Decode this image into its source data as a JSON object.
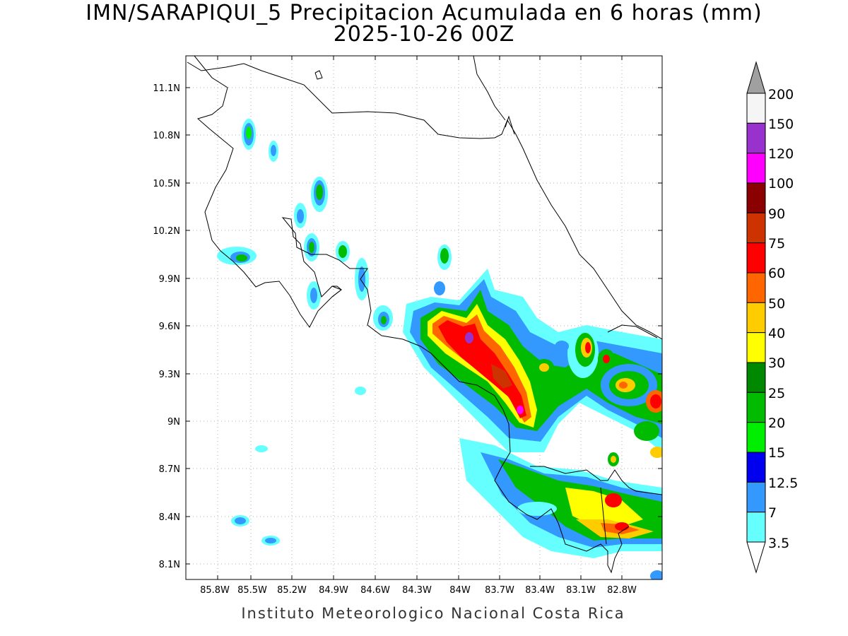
{
  "title": "IMN/SARAPIQUI_5 Precipitacion Acumulada en 6 horas (mm)",
  "subtitle": "2025-10-26 00Z",
  "footer": "Instituto Meteorologico Nacional Costa Rica",
  "map": {
    "lon_range": [
      -86.03,
      -82.6
    ],
    "lat_range": [
      8.0,
      11.3
    ],
    "grid": true,
    "lon_ticks": [
      "85.8W",
      "85.5W",
      "85.2W",
      "84.9W",
      "84.6W",
      "84.3W",
      "84W",
      "83.7W",
      "83.4W",
      "83.1W",
      "82.8W"
    ],
    "lat_ticks": [
      "11.1N",
      "10.8N",
      "10.5N",
      "10.2N",
      "9.9N",
      "9.6N",
      "9.3N",
      "9N",
      "8.7N",
      "8.4N",
      "8.1N"
    ]
  },
  "colorbar": {
    "labels": [
      "200",
      "150",
      "120",
      "100",
      "90",
      "75",
      "60",
      "50",
      "40",
      "30",
      "25",
      "20",
      "15",
      "12.5",
      "7",
      "3.5"
    ],
    "colors": [
      "#f5f5f5",
      "#9932cc",
      "#ff00ff",
      "#8b0000",
      "#cc3300",
      "#ff0000",
      "#ff6600",
      "#ffcc00",
      "#ffff00",
      "#008800",
      "#00bb00",
      "#00ee00",
      "#0000ee",
      "#3399ff",
      "#66ffff"
    ],
    "top_arrow_color": "#a0a0a0",
    "bottom_arrow_color": "#ffffff"
  }
}
